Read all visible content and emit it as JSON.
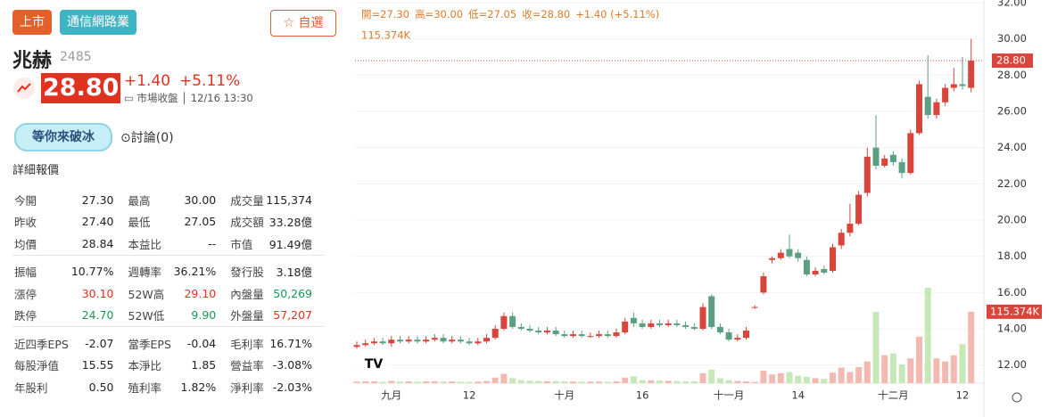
{
  "header": {
    "market": "上市",
    "industry": "通信網路業",
    "watch": "自選",
    "name": "兆赫",
    "code": "2485",
    "price": "28.80",
    "change": "+1.40",
    "change_pct": "+5.11%",
    "status": "市場收盤",
    "time": "12/16 13:30",
    "badge": "等你來破冰",
    "discuss": "討論(0)",
    "section": "詳細報價"
  },
  "table": {
    "rows": [
      [
        "今開",
        "27.30",
        "最高",
        "30.00",
        "成交量",
        "115,374"
      ],
      [
        "昨收",
        "27.40",
        "最低",
        "27.05",
        "成交額",
        "33.28億"
      ],
      [
        "均價",
        "28.84",
        "本益比",
        "--",
        "市值",
        "91.49億"
      ],
      [
        "振幅",
        "10.77%",
        "週轉率",
        "36.21%",
        "發行股",
        "3.18億"
      ],
      [
        "漲停",
        "30.10",
        "52W高",
        "29.10",
        "內盤量",
        "50,269"
      ],
      [
        "跌停",
        "24.70",
        "52W低",
        "9.90",
        "外盤量",
        "57,207"
      ],
      [
        "近四季EPS",
        "-2.07",
        "當季EPS",
        "-0.04",
        "毛利率",
        "16.71%"
      ],
      [
        "每股淨值",
        "15.55",
        "本淨比",
        "1.85",
        "營益率",
        "-3.08%"
      ],
      [
        "年股利",
        "0.50",
        "殖利率",
        "1.82%",
        "淨利率",
        "-2.03%"
      ]
    ]
  },
  "chart_data": {
    "type": "candlestick",
    "legend": [
      "開=27.30",
      "高=30.00",
      "低=27.05",
      "收=28.80",
      "+1.40 (+5.11%)"
    ],
    "volume_legend": "115.374K",
    "last_price_label": {
      "value": 28.8,
      "label": "28.80"
    },
    "last_volume_label": {
      "value": 115374,
      "label": "115.374K"
    },
    "categories": [
      null,
      null,
      null,
      null,
      "九月",
      null,
      null,
      null,
      null,
      null,
      null,
      null,
      null,
      "12",
      null,
      null,
      null,
      null,
      null,
      null,
      null,
      null,
      null,
      null,
      "十月",
      null,
      null,
      null,
      null,
      null,
      null,
      null,
      null,
      "16",
      null,
      null,
      null,
      null,
      null,
      null,
      null,
      null,
      null,
      "十一月",
      null,
      null,
      null,
      null,
      null,
      null,
      null,
      "14",
      null,
      null,
      null,
      null,
      null,
      null,
      null,
      null,
      null,
      null,
      "十二月",
      null,
      null,
      null,
      null,
      null,
      null,
      null,
      "12",
      null
    ],
    "open": [
      13.0,
      13.1,
      13.2,
      13.3,
      13.2,
      13.4,
      13.3,
      13.4,
      13.3,
      13.4,
      13.5,
      13.3,
      13.4,
      13.3,
      13.2,
      13.3,
      13.5,
      14.0,
      14.7,
      14.1,
      14.0,
      13.9,
      13.8,
      13.9,
      13.7,
      13.6,
      13.7,
      13.6,
      13.6,
      13.7,
      13.6,
      13.8,
      14.6,
      14.3,
      14.1,
      14.3,
      14.2,
      14.3,
      14.2,
      14.1,
      14.0,
      15.8,
      14.1,
      13.8,
      13.4,
      13.5,
      15.2,
      16.0,
      17.8,
      17.9,
      18.4,
      18.2,
      17.8,
      17.0,
      17.3,
      17.2,
      18.6,
      19.3,
      19.8,
      21.5,
      24.0,
      23.0,
      23.6,
      23.2,
      22.6,
      24.8,
      26.8,
      25.8,
      26.5,
      27.3,
      27.5,
      27.3
    ],
    "high": [
      13.3,
      13.4,
      13.5,
      13.5,
      13.6,
      13.6,
      13.6,
      13.6,
      13.6,
      13.7,
      13.7,
      13.6,
      13.6,
      13.5,
      13.5,
      13.7,
      14.2,
      14.9,
      14.9,
      14.3,
      14.2,
      14.1,
      14.1,
      14.1,
      13.9,
      13.9,
      13.9,
      13.8,
      13.9,
      13.9,
      14.0,
      14.6,
      14.9,
      14.5,
      14.5,
      14.5,
      14.5,
      14.5,
      14.4,
      14.3,
      15.4,
      15.9,
      14.3,
      14.0,
      13.7,
      14.1,
      15.3,
      17.1,
      18.0,
      18.4,
      19.2,
      18.4,
      18.0,
      17.4,
      17.5,
      18.7,
      19.5,
      20.9,
      21.6,
      24.0,
      25.8,
      23.6,
      23.8,
      23.4,
      25.0,
      27.7,
      29.1,
      26.7,
      27.5,
      28.4,
      29.0,
      30.0
    ],
    "low": [
      12.9,
      13.0,
      13.1,
      13.1,
      13.0,
      13.2,
      13.2,
      13.2,
      13.2,
      13.3,
      13.2,
      13.2,
      13.2,
      13.1,
      13.1,
      13.2,
      13.4,
      13.9,
      14.0,
      13.9,
      13.8,
      13.7,
      13.7,
      13.6,
      13.5,
      13.5,
      13.5,
      13.5,
      13.5,
      13.5,
      13.5,
      13.7,
      14.1,
      14.0,
      14.0,
      14.1,
      14.1,
      14.1,
      14.0,
      13.9,
      13.9,
      14.0,
      13.7,
      13.3,
      13.3,
      13.4,
      15.1,
      15.9,
      17.6,
      17.8,
      17.9,
      17.7,
      16.9,
      16.9,
      17.0,
      17.1,
      18.4,
      19.1,
      19.7,
      21.3,
      22.8,
      22.9,
      23.0,
      22.3,
      22.5,
      24.7,
      25.6,
      25.6,
      26.3,
      27.1,
      27.2,
      27.05
    ],
    "close": [
      13.1,
      13.2,
      13.3,
      13.2,
      13.4,
      13.3,
      13.4,
      13.3,
      13.4,
      13.5,
      13.3,
      13.4,
      13.3,
      13.2,
      13.3,
      13.5,
      14.0,
      14.7,
      14.1,
      14.0,
      13.9,
      13.8,
      13.9,
      13.7,
      13.6,
      13.7,
      13.6,
      13.6,
      13.7,
      13.6,
      13.8,
      14.4,
      14.3,
      14.1,
      14.3,
      14.2,
      14.3,
      14.2,
      14.1,
      14.0,
      15.2,
      14.1,
      13.8,
      13.4,
      13.5,
      13.9,
      15.2,
      16.9,
      17.9,
      18.2,
      18.0,
      17.9,
      17.0,
      17.2,
      17.1,
      18.5,
      19.3,
      19.8,
      21.4,
      23.5,
      23.0,
      23.4,
      23.2,
      22.6,
      24.8,
      27.5,
      25.8,
      26.5,
      27.3,
      27.5,
      27.4,
      28.8
    ],
    "volume": [
      2500,
      3000,
      2800,
      2200,
      3500,
      2600,
      3000,
      2400,
      2800,
      3200,
      2500,
      2700,
      2300,
      2100,
      2600,
      3400,
      9000,
      15000,
      8000,
      5000,
      4000,
      3500,
      3000,
      3200,
      2800,
      2600,
      2500,
      2400,
      2600,
      2300,
      3000,
      9000,
      11000,
      5000,
      4500,
      4000,
      3800,
      3500,
      3000,
      3200,
      16000,
      22000,
      8000,
      5000,
      3500,
      3000,
      2000,
      20000,
      14000,
      16000,
      18000,
      12000,
      10000,
      8000,
      7000,
      17000,
      25000,
      18000,
      26000,
      35000,
      115000,
      45000,
      48000,
      30000,
      40000,
      75000,
      154000,
      40000,
      35000,
      45000,
      63000,
      115374
    ],
    "up_color": "#d9453a",
    "down_color": "#5c9f82",
    "up_volume_color": "#f3b9b1",
    "down_volume_color": "#c6e8b6",
    "ylim": [
      11.0,
      32.0
    ],
    "yticks": [
      {
        "value": 12,
        "label": "12.00"
      },
      {
        "value": 14,
        "label": "14.00"
      },
      {
        "value": 16,
        "label": "16.00"
      },
      {
        "value": 18,
        "label": "18.00"
      },
      {
        "value": 20,
        "label": "20.00"
      },
      {
        "value": 22,
        "label": "22.00"
      },
      {
        "value": 24,
        "label": "24.00"
      },
      {
        "value": 26,
        "label": "26.00"
      },
      {
        "value": 28,
        "label": "28.00"
      },
      {
        "value": 30,
        "label": "30.00"
      },
      {
        "value": 32,
        "label": "32.00"
      }
    ],
    "grid": true
  }
}
